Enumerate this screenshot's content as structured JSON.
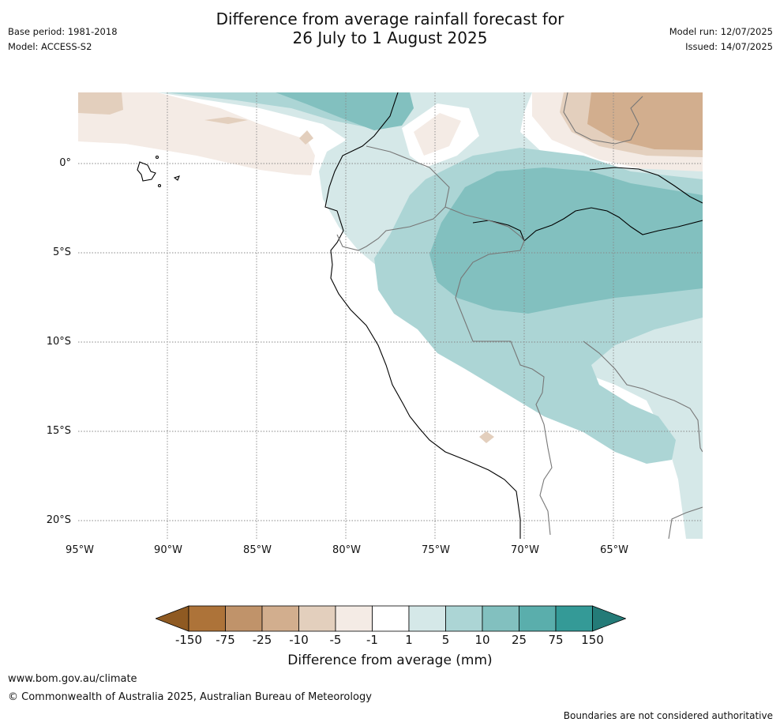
{
  "header": {
    "title_line1": "Difference from average rainfall forecast for",
    "title_line2": "26 July to 1 August 2025",
    "base_period": "Base period: 1981-2018",
    "model": "Model: ACCESS-S2",
    "model_run": "Model run: 12/07/2025",
    "issued": "Issued: 14/07/2025"
  },
  "map": {
    "lat_labels": [
      "0°",
      "5°S",
      "10°S",
      "15°S",
      "20°S"
    ],
    "lon_labels": [
      "95°W",
      "90°W",
      "85°W",
      "80°W",
      "75°W",
      "70°W",
      "65°W"
    ],
    "lat_range": [
      -21,
      4
    ],
    "lon_range": [
      -95,
      -60
    ]
  },
  "legend": {
    "title": "Difference from average (mm)",
    "ticks": [
      "-150",
      "-75",
      "-25",
      "-10",
      "-5",
      "-1",
      "1",
      "5",
      "10",
      "25",
      "75",
      "150"
    ],
    "colors": [
      "#8f5a22",
      "#ad7339",
      "#c0936a",
      "#d2ae8e",
      "#e3cfbd",
      "#f4ebe5",
      "#ffffff",
      "#d5e8e8",
      "#acd5d5",
      "#82c0bf",
      "#5aaeac",
      "#349a97",
      "#247b78"
    ]
  },
  "footer": {
    "url": "www.bom.gov.au/climate",
    "copyright": "© Commonwealth of Australia 2025, Australian Bureau of Meteorology",
    "note": "Boundaries are not considered authoritative"
  }
}
